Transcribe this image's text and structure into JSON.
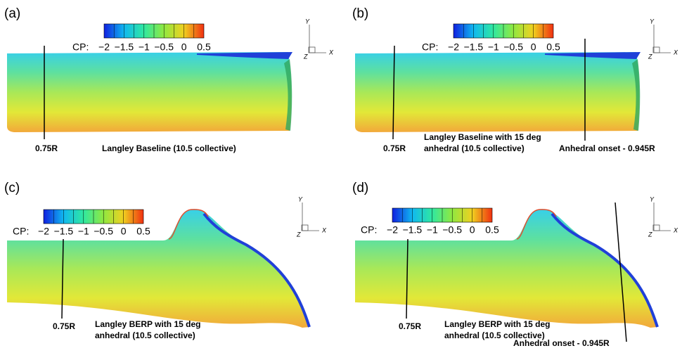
{
  "panels": [
    {
      "label": "(a)",
      "colorbar": {
        "label": "CP:",
        "ticks": [
          "−2",
          "−1.5",
          "−1",
          "−0.5",
          "0",
          "0.5"
        ]
      },
      "station": "0.75R",
      "caption": [
        "Langley Baseline (10.5 collective)"
      ],
      "axes": {
        "y": "Y",
        "x": "X",
        "z": "Z"
      }
    },
    {
      "label": "(b)",
      "colorbar": {
        "label": "CP:",
        "ticks": [
          "−2",
          "−1.5",
          "−1",
          "−0.5",
          "0",
          "0.5"
        ]
      },
      "station": "0.75R",
      "caption": [
        "Langley Baseline with 15 deg",
        "anhedral (10.5 collective)"
      ],
      "onset": "Anhedral onset - 0.945R",
      "axes": {
        "y": "Y",
        "x": "X",
        "z": "Z"
      }
    },
    {
      "label": "(c)",
      "colorbar": {
        "label": "CP:",
        "ticks": [
          "−2",
          "−1.5",
          "−1",
          "−0.5",
          "0",
          "0.5"
        ]
      },
      "station": "0.75R",
      "caption": [
        "Langley BERP with 15 deg",
        "anhedral (10.5 collective)"
      ],
      "axes": {
        "y": "Y",
        "x": "X",
        "z": "Z"
      }
    },
    {
      "label": "(d)",
      "colorbar": {
        "label": "CP:",
        "ticks": [
          "−2",
          "−1.5",
          "−1",
          "−0.5",
          "0",
          "0.5"
        ]
      },
      "station": "0.75R",
      "caption": [
        "Langley BERP with 15 deg",
        "anhedral (10.5 collective)"
      ],
      "onset": "Anhedral onset - 0.945R",
      "axes": {
        "y": "Y",
        "x": "X",
        "z": "Z"
      }
    }
  ]
}
